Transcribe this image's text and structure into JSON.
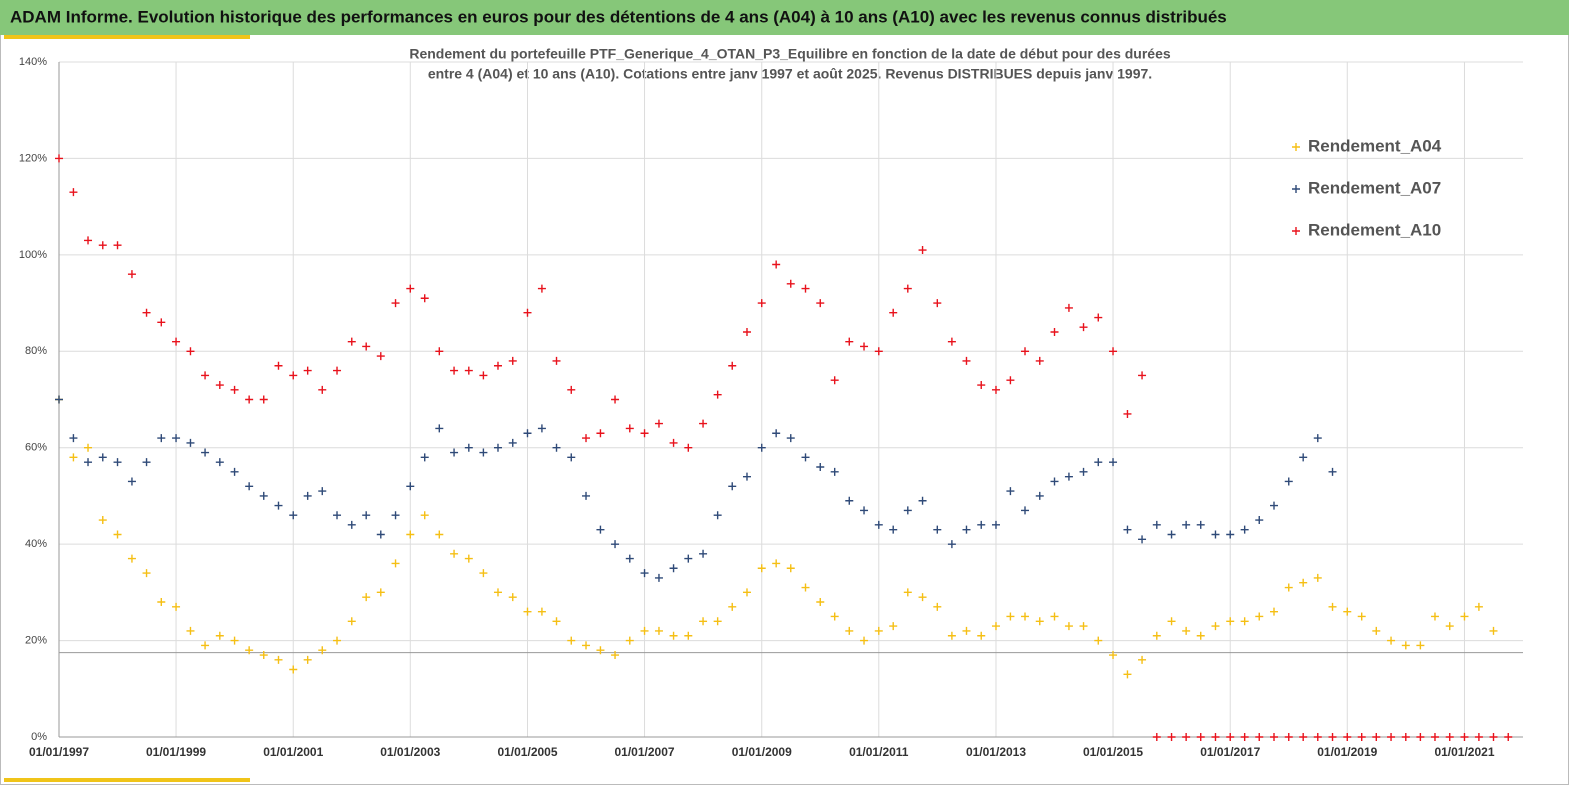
{
  "header": {
    "title": "ADAM Informe. Evolution historique des performances en euros pour des détentions de 4 ans (A04) à 10 ans (A10) avec les revenus connus distribués"
  },
  "chart_data": {
    "type": "scatter",
    "title": [
      "Rendement du portefeuille PTF_Generique_4_OTAN_P3_Equilibre  en fonction de la date de début pour des durées",
      "entre 4 (A04) et 10 ans (A10). Cotations entre janv 1997 et août 2025. Revenus DISTRIBUES depuis janv 1997."
    ],
    "xlim": [
      "01/01/1997",
      "01/01/2022"
    ],
    "xticks": [
      "01/01/1997",
      "01/01/1999",
      "01/01/2001",
      "01/01/2003",
      "01/01/2005",
      "01/01/2007",
      "01/01/2009",
      "01/01/2011",
      "01/01/2013",
      "01/01/2015",
      "01/01/2017",
      "01/01/2019",
      "01/01/2021"
    ],
    "ylim": [
      0,
      140
    ],
    "yticks": [
      {
        "value": 0,
        "label": "0%"
      },
      {
        "value": 20,
        "label": "20%"
      },
      {
        "value": 40,
        "label": "40%"
      },
      {
        "value": 60,
        "label": "60%"
      },
      {
        "value": 80,
        "label": "80%"
      },
      {
        "value": 100,
        "label": "100%"
      },
      {
        "value": 120,
        "label": "120%"
      },
      {
        "value": 140,
        "label": "140%"
      }
    ],
    "grid": true,
    "legend": "upper right",
    "hline": 17.5,
    "series": [
      {
        "name": "Rendement_A04",
        "color": "#f5bf14",
        "x": [
          "01/01/1997",
          "01/04/1997",
          "01/07/1997",
          "01/10/1997",
          "01/01/1998",
          "01/04/1998",
          "01/07/1998",
          "01/10/1998",
          "01/01/1999",
          "01/04/1999",
          "01/07/1999",
          "01/10/1999",
          "01/01/2000",
          "01/04/2000",
          "01/07/2000",
          "01/10/2000",
          "01/01/2001",
          "01/04/2001",
          "01/07/2001",
          "01/10/2001",
          "01/01/2002",
          "01/04/2002",
          "01/07/2002",
          "01/10/2002",
          "01/01/2003",
          "01/04/2003",
          "01/07/2003",
          "01/10/2003",
          "01/01/2004",
          "01/04/2004",
          "01/07/2004",
          "01/10/2004",
          "01/01/2005",
          "01/04/2005",
          "01/07/2005",
          "01/10/2005",
          "01/01/2006",
          "01/04/2006",
          "01/07/2006",
          "01/10/2006",
          "01/01/2007",
          "01/04/2007",
          "01/07/2007",
          "01/10/2007",
          "01/01/2008",
          "01/04/2008",
          "01/07/2008",
          "01/10/2008",
          "01/01/2009",
          "01/04/2009",
          "01/07/2009",
          "01/10/2009",
          "01/01/2010",
          "01/04/2010",
          "01/07/2010",
          "01/10/2010",
          "01/01/2011",
          "01/04/2011",
          "01/07/2011",
          "01/10/2011",
          "01/01/2012",
          "01/04/2012",
          "01/07/2012",
          "01/10/2012",
          "01/01/2013",
          "01/04/2013",
          "01/07/2013",
          "01/10/2013",
          "01/01/2014",
          "01/04/2014",
          "01/07/2014",
          "01/10/2014",
          "01/01/2015",
          "01/04/2015",
          "01/07/2015",
          "01/10/2015",
          "01/01/2016",
          "01/04/2016",
          "01/07/2016",
          "01/10/2016",
          "01/01/2017",
          "01/04/2017",
          "01/07/2017",
          "01/10/2017",
          "01/01/2018",
          "01/04/2018",
          "01/07/2018",
          "01/10/2018",
          "01/01/2019",
          "01/04/2019",
          "01/07/2019",
          "01/10/2019",
          "01/01/2020",
          "01/04/2020",
          "01/07/2020",
          "01/10/2020",
          "01/01/2021",
          "01/04/2021",
          "01/07/2021"
        ],
        "values": [
          70,
          58,
          60,
          45,
          42,
          37,
          34,
          28,
          27,
          22,
          19,
          21,
          20,
          18,
          17,
          16,
          14,
          16,
          18,
          20,
          24,
          29,
          30,
          36,
          42,
          46,
          42,
          38,
          37,
          34,
          30,
          29,
          26,
          26,
          24,
          20,
          19,
          18,
          17,
          20,
          22,
          22,
          21,
          21,
          24,
          24,
          27,
          30,
          35,
          36,
          35,
          31,
          28,
          25,
          22,
          20,
          22,
          23,
          30,
          29,
          27,
          21,
          22,
          21,
          23,
          25,
          25,
          24,
          25,
          23,
          23,
          20,
          17,
          13,
          16,
          21,
          24,
          22,
          21,
          23,
          24,
          24,
          25,
          26,
          31,
          32,
          33,
          27,
          26,
          25,
          22,
          20,
          19,
          19,
          25,
          23,
          25,
          27,
          22
        ]
      },
      {
        "name": "Rendement_A07",
        "color": "#2f4a78",
        "x": [
          "01/01/1997",
          "01/04/1997",
          "01/07/1997",
          "01/10/1997",
          "01/01/1998",
          "01/04/1998",
          "01/07/1998",
          "01/10/1998",
          "01/01/1999",
          "01/04/1999",
          "01/07/1999",
          "01/10/1999",
          "01/01/2000",
          "01/04/2000",
          "01/07/2000",
          "01/10/2000",
          "01/01/2001",
          "01/04/2001",
          "01/07/2001",
          "01/10/2001",
          "01/01/2002",
          "01/04/2002",
          "01/07/2002",
          "01/10/2002",
          "01/01/2003",
          "01/04/2003",
          "01/07/2003",
          "01/10/2003",
          "01/01/2004",
          "01/04/2004",
          "01/07/2004",
          "01/10/2004",
          "01/01/2005",
          "01/04/2005",
          "01/07/2005",
          "01/10/2005",
          "01/01/2006",
          "01/04/2006",
          "01/07/2006",
          "01/10/2006",
          "01/01/2007",
          "01/04/2007",
          "01/07/2007",
          "01/10/2007",
          "01/01/2008",
          "01/04/2008",
          "01/07/2008",
          "01/10/2008",
          "01/01/2009",
          "01/04/2009",
          "01/07/2009",
          "01/10/2009",
          "01/01/2010",
          "01/04/2010",
          "01/07/2010",
          "01/10/2010",
          "01/01/2011",
          "01/04/2011",
          "01/07/2011",
          "01/10/2011",
          "01/01/2012",
          "01/04/2012",
          "01/07/2012",
          "01/10/2012",
          "01/01/2013",
          "01/04/2013",
          "01/07/2013",
          "01/10/2013",
          "01/01/2014",
          "01/04/2014",
          "01/07/2014",
          "01/10/2014",
          "01/01/2015",
          "01/04/2015",
          "01/07/2015",
          "01/10/2015",
          "01/01/2016",
          "01/04/2016",
          "01/07/2016",
          "01/10/2016",
          "01/01/2017",
          "01/04/2017",
          "01/07/2017",
          "01/10/2017",
          "01/01/2018",
          "01/04/2018",
          "01/07/2018",
          "01/10/2018"
        ],
        "values": [
          70,
          62,
          57,
          58,
          57,
          53,
          57,
          62,
          62,
          61,
          59,
          57,
          55,
          52,
          50,
          48,
          46,
          50,
          51,
          46,
          44,
          46,
          42,
          46,
          52,
          58,
          64,
          59,
          60,
          59,
          60,
          61,
          63,
          64,
          60,
          58,
          50,
          43,
          40,
          37,
          34,
          33,
          35,
          37,
          38,
          46,
          52,
          54,
          60,
          63,
          62,
          58,
          56,
          55,
          49,
          47,
          44,
          43,
          47,
          49,
          43,
          40,
          43,
          44,
          44,
          51,
          47,
          50,
          53,
          54,
          55,
          57,
          57,
          43,
          41,
          44,
          42,
          44,
          44,
          42,
          42,
          43,
          45,
          48,
          53,
          58,
          62,
          55
        ]
      },
      {
        "name": "Rendement_A10",
        "color": "#e8121c",
        "x": [
          "01/01/1997",
          "01/04/1997",
          "01/07/1997",
          "01/10/1997",
          "01/01/1998",
          "01/04/1998",
          "01/07/1998",
          "01/10/1998",
          "01/01/1999",
          "01/04/1999",
          "01/07/1999",
          "01/10/1999",
          "01/01/2000",
          "01/04/2000",
          "01/07/2000",
          "01/10/2000",
          "01/01/2001",
          "01/04/2001",
          "01/07/2001",
          "01/10/2001",
          "01/01/2002",
          "01/04/2002",
          "01/07/2002",
          "01/10/2002",
          "01/01/2003",
          "01/04/2003",
          "01/07/2003",
          "01/10/2003",
          "01/01/2004",
          "01/04/2004",
          "01/07/2004",
          "01/10/2004",
          "01/01/2005",
          "01/04/2005",
          "01/07/2005",
          "01/10/2005",
          "01/01/2006",
          "01/04/2006",
          "01/07/2006",
          "01/10/2006",
          "01/01/2007",
          "01/04/2007",
          "01/07/2007",
          "01/10/2007",
          "01/01/2008",
          "01/04/2008",
          "01/07/2008",
          "01/10/2008",
          "01/01/2009",
          "01/04/2009",
          "01/07/2009",
          "01/10/2009",
          "01/01/2010",
          "01/04/2010",
          "01/07/2010",
          "01/10/2010",
          "01/01/2011",
          "01/04/2011",
          "01/07/2011",
          "01/10/2011",
          "01/01/2012",
          "01/04/2012",
          "01/07/2012",
          "01/10/2012",
          "01/01/2013",
          "01/04/2013",
          "01/07/2013",
          "01/10/2013",
          "01/01/2014",
          "01/04/2014",
          "01/07/2014",
          "01/10/2014",
          "01/01/2015",
          "01/04/2015",
          "01/07/2015",
          "01/10/2015",
          "01/01/2016",
          "01/04/2016",
          "01/07/2016",
          "01/10/2016",
          "01/01/2017",
          "01/04/2017",
          "01/07/2017",
          "01/10/2017",
          "01/01/2018",
          "01/04/2018",
          "01/07/2018",
          "01/10/2018",
          "01/01/2019",
          "01/04/2019",
          "01/07/2019",
          "01/10/2019",
          "01/01/2020",
          "01/04/2020",
          "01/07/2020",
          "01/10/2020",
          "01/01/2021",
          "01/04/2021",
          "01/07/2021",
          "01/10/2021"
        ],
        "values": [
          120,
          113,
          103,
          102,
          102,
          96,
          88,
          86,
          82,
          80,
          75,
          73,
          72,
          70,
          70,
          77,
          75,
          76,
          72,
          76,
          82,
          81,
          79,
          90,
          93,
          91,
          80,
          76,
          76,
          75,
          77,
          78,
          88,
          93,
          78,
          72,
          62,
          63,
          70,
          64,
          63,
          65,
          61,
          60,
          65,
          71,
          77,
          84,
          90,
          98,
          94,
          93,
          90,
          74,
          82,
          81,
          80,
          88,
          93,
          101,
          90,
          82,
          78,
          73,
          72,
          74,
          80,
          78,
          84,
          89,
          85,
          87,
          80,
          67,
          75,
          0,
          0,
          0,
          0,
          0,
          0,
          0,
          0,
          0,
          0,
          0,
          0,
          0,
          0,
          0,
          0,
          0,
          0,
          0,
          0,
          0,
          0,
          0,
          0,
          0
        ]
      }
    ]
  }
}
